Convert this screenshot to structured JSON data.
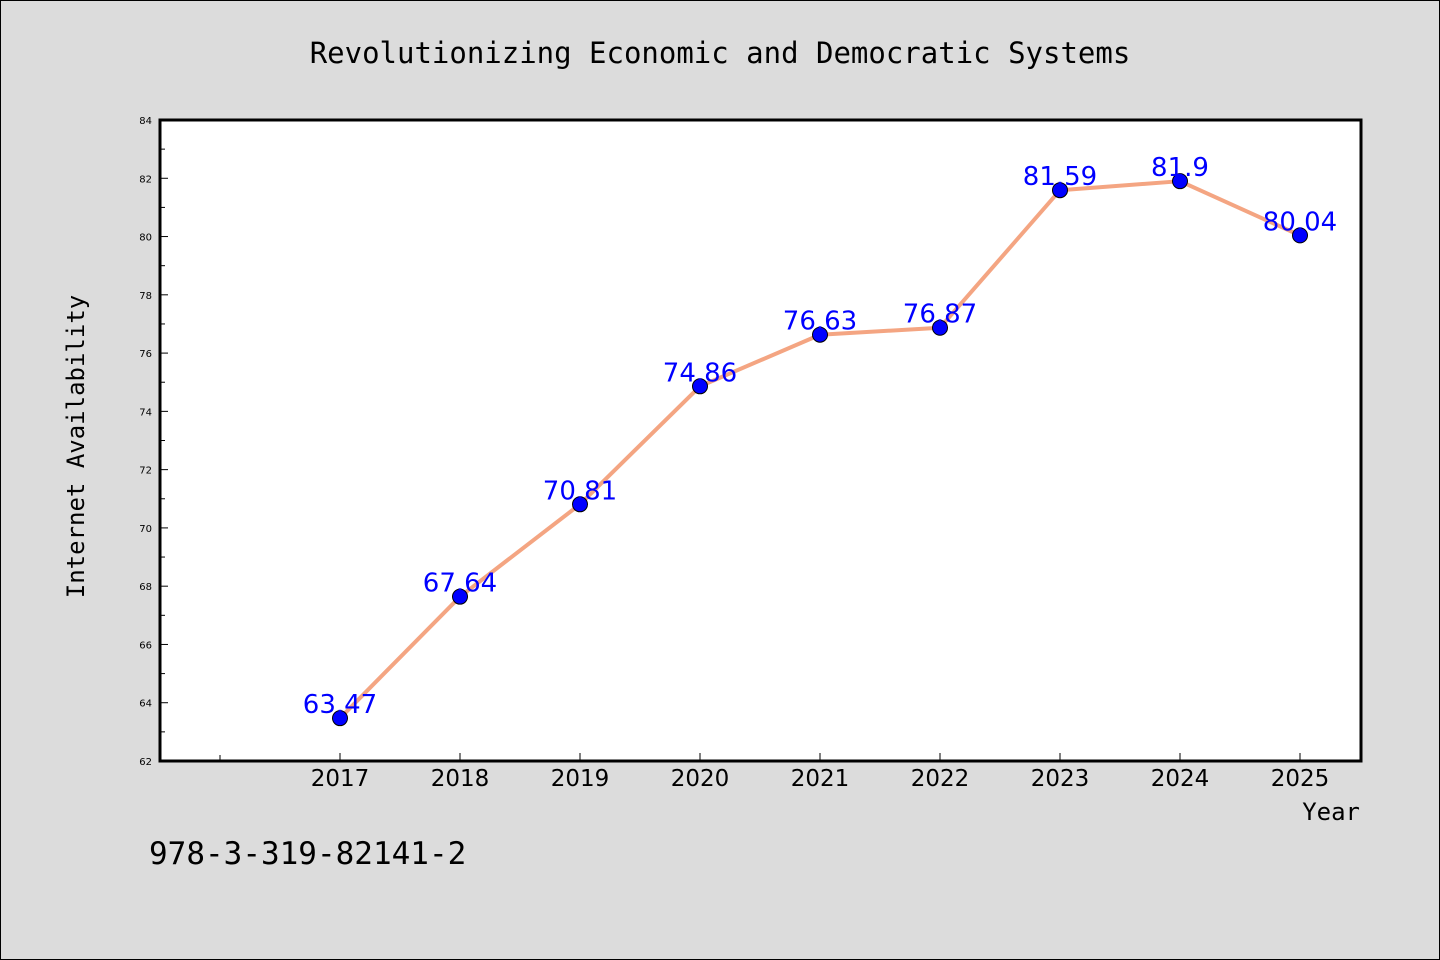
{
  "chart_data": {
    "type": "line",
    "title": "Revolutionizing Economic and Democratic Systems",
    "xlabel": "Year",
    "ylabel": "Internet Availability",
    "categories": [
      "2017",
      "2018",
      "2019",
      "2020",
      "2021",
      "2022",
      "2023",
      "2024",
      "2025"
    ],
    "series": [
      {
        "values": [
          63.47,
          67.64,
          70.81,
          74.86,
          76.63,
          76.87,
          81.59,
          81.9,
          80.04
        ],
        "data_labels": [
          "63.47",
          "67.64",
          "70.81",
          "74.86",
          "76.63",
          "76.87",
          "81.59",
          "81.9",
          "80.04"
        ],
        "line_color": "#f4a582",
        "marker_color": "#0000ff"
      }
    ],
    "ylim": [
      62,
      84
    ],
    "yticks": [
      "62",
      "64",
      "66",
      "68",
      "70",
      "72",
      "74",
      "76",
      "78",
      "80",
      "82",
      "84"
    ],
    "grid": false,
    "legend": "none"
  },
  "annotation": {
    "isbn": "978-3-319-82141-2"
  },
  "colors": {
    "background": "#dcdcdc",
    "plot_background": "#ffffff",
    "label_color": "#0000ff"
  }
}
